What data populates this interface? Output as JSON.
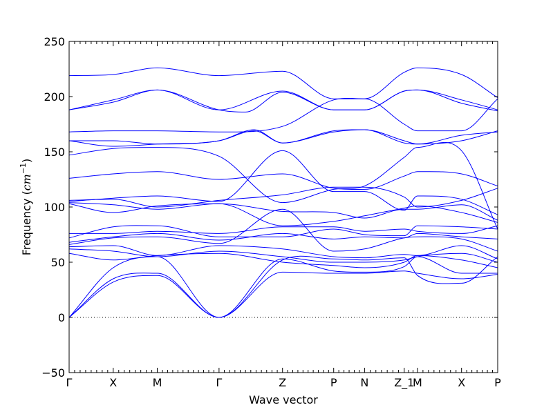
{
  "chart_data": {
    "type": "line",
    "title": "",
    "xlabel": "Wave vector",
    "ylabel": "Frequency",
    "ylabel_unit": "cm",
    "ylabel_unit_exp": "−1",
    "ylim": [
      -50,
      250
    ],
    "yticks": [
      -50,
      0,
      50,
      100,
      150,
      200,
      250
    ],
    "x_ticks": [
      {
        "label": "Γ",
        "pos": 0.0
      },
      {
        "label": "X",
        "pos": 1.0
      },
      {
        "label": "M",
        "pos": 2.0
      },
      {
        "label": "Γ",
        "pos": 3.4
      },
      {
        "label": "Z",
        "pos": 4.84
      },
      {
        "label": "P",
        "pos": 6.0
      },
      {
        "label": "N",
        "pos": 6.7
      },
      {
        "label": "Z_1",
        "pos": 7.6
      },
      {
        "label": "M",
        "pos": 7.9
      },
      {
        "label": "X",
        "pos": 8.9
      },
      {
        "label": "P",
        "pos": 9.72
      }
    ],
    "zero_line": true,
    "line_color": "#0000ff",
    "zero_line_color": "#000000",
    "series": [
      {
        "x": [
          0,
          1,
          2,
          3.4,
          4.84,
          6,
          6.7,
          7.6,
          7.9,
          8.9,
          9.72
        ],
        "values": [
          219,
          220,
          226,
          219,
          223,
          198,
          198,
          222,
          226,
          220,
          199
        ]
      },
      {
        "x": [
          0,
          1,
          2,
          3.4,
          4.84,
          6,
          6.7,
          7.6,
          7.9,
          8.9,
          9.72
        ],
        "values": [
          188,
          197,
          206,
          188,
          205,
          188,
          188,
          205,
          206,
          197,
          188
        ]
      },
      {
        "x": [
          0,
          1,
          2,
          3.4,
          4.0,
          4.84,
          6,
          6.7,
          7.6,
          7.9,
          8.9,
          9.72
        ],
        "values": [
          188,
          195,
          206,
          188,
          186,
          204,
          188,
          188,
          205,
          206,
          194,
          187
        ]
      },
      {
        "x": [
          0,
          1,
          2,
          3.4,
          4.84,
          6,
          6.7,
          7.6,
          7.9,
          8.9,
          9.72
        ],
        "values": [
          168,
          169,
          169,
          168,
          173,
          197,
          198,
          175,
          169,
          169,
          198
        ]
      },
      {
        "x": [
          0,
          1,
          2,
          3.4,
          4.2,
          4.84,
          6,
          6.7,
          7.6,
          7.9,
          8.9,
          9.72
        ],
        "values": [
          160,
          160,
          157,
          160,
          169,
          158,
          169,
          170,
          160,
          157,
          160,
          169
        ]
      },
      {
        "x": [
          0,
          1,
          2,
          3.4,
          4.2,
          4.84,
          6,
          6.7,
          7.6,
          7.9,
          8.9,
          9.72
        ],
        "values": [
          160,
          155,
          157,
          160,
          170,
          158,
          168,
          170,
          158,
          157,
          165,
          168
        ]
      },
      {
        "x": [
          0,
          1,
          2,
          3.4,
          4.84,
          6,
          6.7,
          7.6,
          7.9,
          8.9,
          9.72
        ],
        "values": [
          147,
          153,
          154,
          146,
          104,
          116,
          119,
          145,
          154,
          151,
          80
        ]
      },
      {
        "x": [
          0,
          1,
          2,
          3.4,
          4.84,
          6,
          6.7,
          7.6,
          7.9,
          8.9,
          9.72
        ],
        "values": [
          126,
          130,
          132,
          125,
          130,
          117,
          116,
          128,
          132,
          130,
          119
        ]
      },
      {
        "x": [
          0,
          1,
          2,
          3.4,
          4.84,
          6,
          6.7,
          7.6,
          7.9,
          8.9,
          9.72
        ],
        "values": [
          106,
          107,
          100,
          106,
          111,
          118,
          118,
          109,
          100,
          106,
          117
        ]
      },
      {
        "x": [
          0,
          1,
          2,
          3.4,
          4.84,
          6,
          6.7,
          7.6,
          7.9,
          8.9,
          9.72
        ],
        "values": [
          105,
          108,
          110,
          105,
          151,
          114,
          114,
          97,
          110,
          107,
          93
        ]
      },
      {
        "x": [
          0,
          1,
          2,
          3.4,
          4.84,
          6,
          6.7,
          7.6,
          7.9,
          8.9,
          9.72
        ],
        "values": [
          104,
          102,
          98,
          103,
          96,
          95,
          90,
          98,
          98,
          102,
          88
        ]
      },
      {
        "x": [
          0,
          1,
          2,
          3.4,
          4.84,
          6,
          6.7,
          7.6,
          7.9,
          8.9,
          9.72
        ],
        "values": [
          103,
          95,
          101,
          103,
          83,
          87,
          92,
          99,
          101,
          95,
          86
        ]
      },
      {
        "x": [
          0,
          1,
          2,
          3.4,
          4.84,
          6,
          6.7,
          7.6,
          7.9,
          8.9,
          9.72
        ],
        "values": [
          76,
          76,
          78,
          76,
          82,
          82,
          78,
          80,
          78,
          76,
          83
        ]
      },
      {
        "x": [
          0,
          1,
          2,
          3.4,
          4.84,
          6,
          6.7,
          7.6,
          7.9,
          8.9,
          9.72
        ],
        "values": [
          72,
          82,
          83,
          73,
          73,
          80,
          75,
          74,
          83,
          82,
          80
        ]
      },
      {
        "x": [
          0,
          1,
          2,
          3.4,
          4.84,
          6,
          6.7,
          7.6,
          7.9,
          8.9,
          9.72
        ],
        "values": [
          68,
          73,
          76,
          70,
          76,
          71,
          73,
          72,
          76,
          73,
          71
        ]
      },
      {
        "x": [
          0,
          1,
          2,
          3.4,
          4.84,
          6,
          6.7,
          7.6,
          7.9,
          8.9,
          9.72
        ],
        "values": [
          66,
          72,
          73,
          67,
          98,
          60,
          62,
          72,
          73,
          71,
          60
        ]
      },
      {
        "x": [
          0,
          1,
          2,
          3.4,
          4.84,
          6,
          6.7,
          7.6,
          7.9,
          8.9,
          9.72
        ],
        "values": [
          64,
          65,
          56,
          65,
          62,
          55,
          54,
          57,
          56,
          65,
          53
        ]
      },
      {
        "x": [
          0,
          1,
          2,
          3.4,
          4.84,
          6,
          6.7,
          7.6,
          7.9,
          8.9,
          9.72
        ],
        "values": [
          62,
          60,
          55,
          60,
          55,
          50,
          50,
          52,
          55,
          58,
          50
        ]
      },
      {
        "x": [
          0,
          1,
          2,
          3.4,
          4.84,
          6,
          6.7,
          7.6,
          7.9,
          8.9,
          9.72
        ],
        "values": [
          58,
          52,
          56,
          58,
          50,
          47,
          45,
          50,
          56,
          52,
          45
        ]
      },
      {
        "x": [
          0,
          1,
          2,
          3.4,
          4.84,
          6,
          6.7,
          7.6,
          7.9,
          8.9,
          9.72
        ],
        "values": [
          0,
          45,
          55,
          0,
          53,
          42,
          41,
          46,
          55,
          40,
          40
        ]
      },
      {
        "x": [
          0,
          1,
          2,
          3.4,
          4.84,
          6,
          6.7,
          7.6,
          7.9,
          8.9,
          9.72
        ],
        "values": [
          0,
          35,
          40,
          0,
          41,
          40,
          40,
          42,
          40,
          35,
          39
        ]
      },
      {
        "x": [
          0,
          1,
          2,
          3.4,
          4.84,
          6,
          6.7,
          7.6,
          7.9,
          8.9,
          9.72
        ],
        "values": [
          0,
          32,
          38,
          0,
          52,
          53,
          52,
          54,
          38,
          31,
          55
        ]
      }
    ]
  }
}
